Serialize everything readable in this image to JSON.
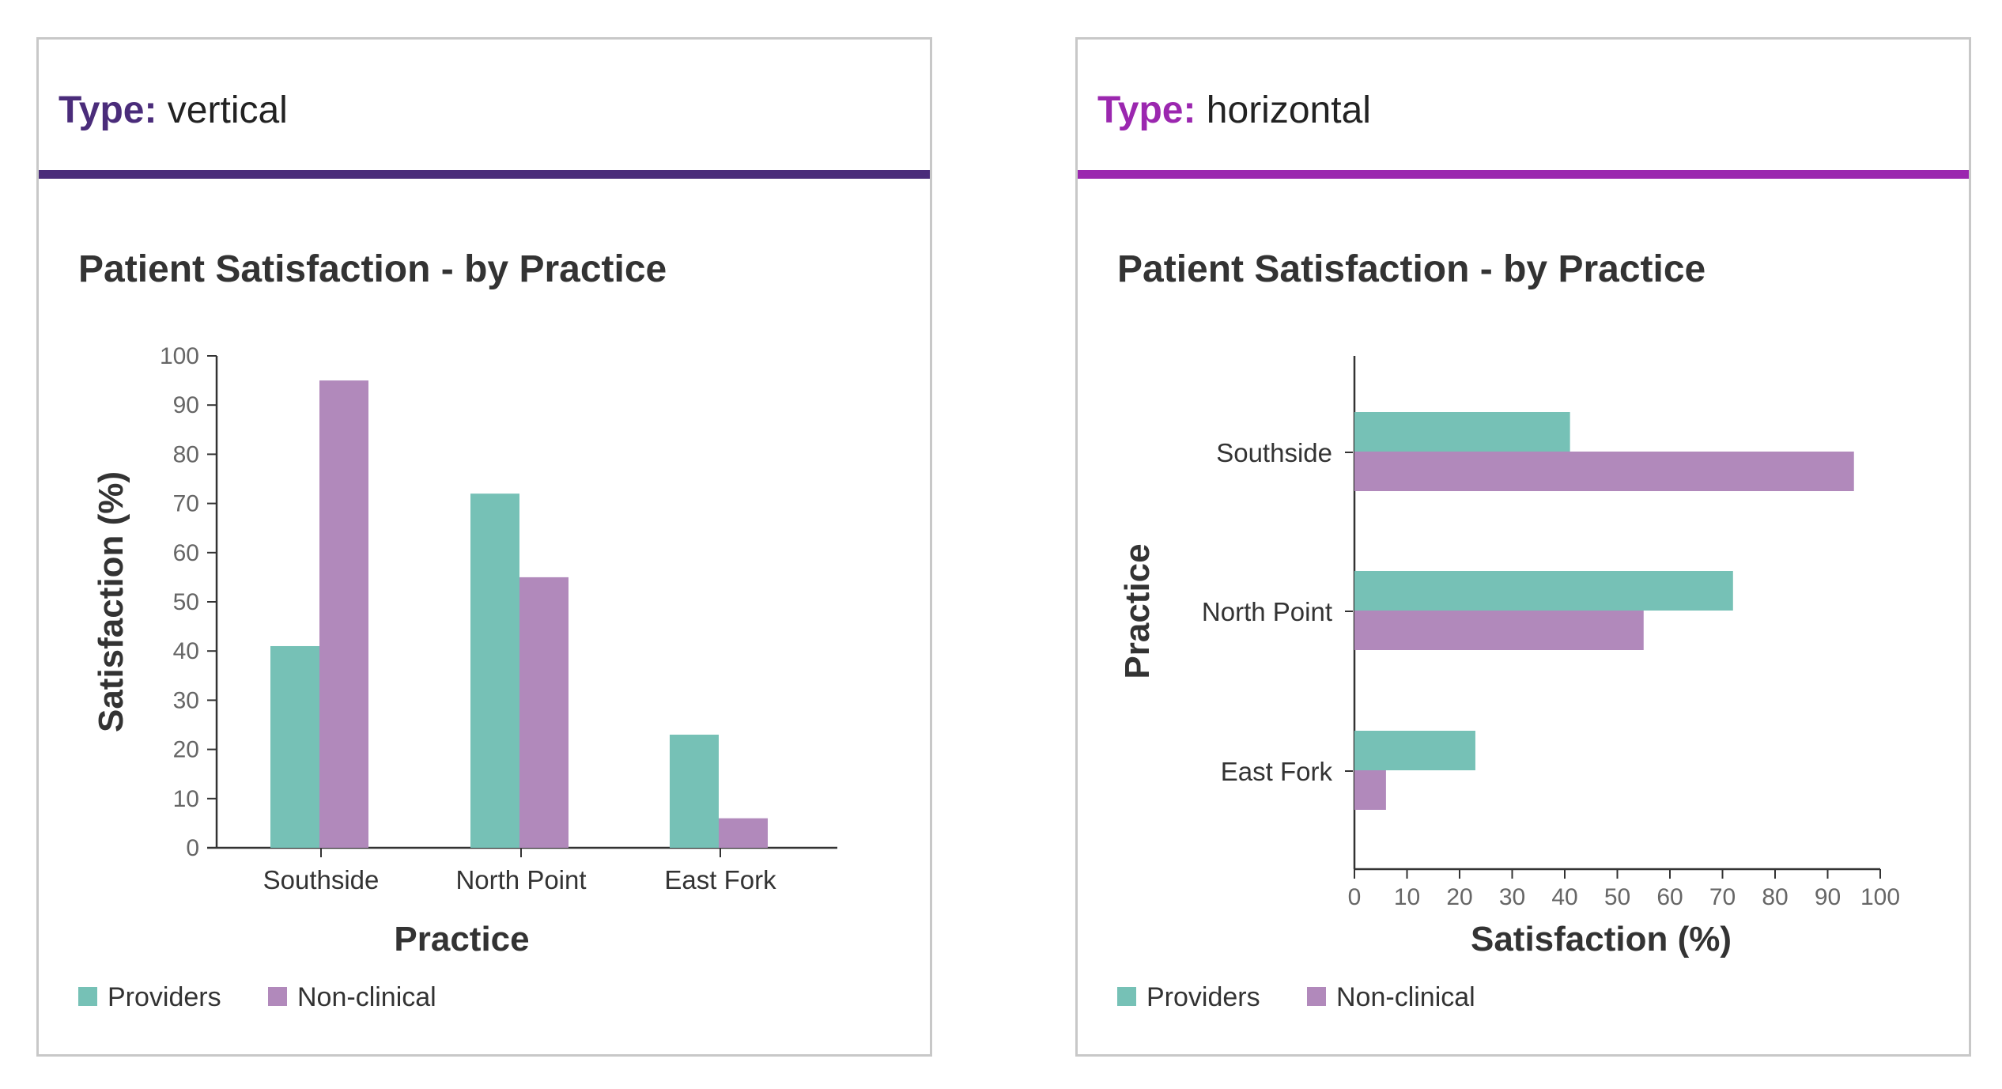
{
  "colors": {
    "providers": "#76c1b6",
    "nonclinical": "#b189bb",
    "accent_vertical": "#4a2c7a",
    "accent_horizontal": "#9b27af"
  },
  "cards": [
    {
      "type_label": "Type:",
      "type_value": "vertical"
    },
    {
      "type_label": "Type:",
      "type_value": "horizontal"
    }
  ],
  "chart_data": [
    {
      "type": "bar",
      "orientation": "vertical",
      "title": "Patient Satisfaction - by Practice",
      "categories": [
        "Southside",
        "North Point",
        "East Fork"
      ],
      "series": [
        {
          "name": "Providers",
          "values": [
            41,
            72,
            23
          ]
        },
        {
          "name": "Non-clinical",
          "values": [
            95,
            55,
            6
          ]
        }
      ],
      "xlabel": "Practice",
      "ylabel": "Satisfaction (%)",
      "ylim": [
        0,
        100
      ],
      "ticks": [
        0,
        10,
        20,
        30,
        40,
        50,
        60,
        70,
        80,
        90,
        100
      ],
      "legend": "bottom-left",
      "grid": false
    },
    {
      "type": "bar",
      "orientation": "horizontal",
      "title": "Patient Satisfaction - by Practice",
      "categories": [
        "Southside",
        "North Point",
        "East Fork"
      ],
      "series": [
        {
          "name": "Providers",
          "values": [
            41,
            72,
            23
          ]
        },
        {
          "name": "Non-clinical",
          "values": [
            95,
            55,
            6
          ]
        }
      ],
      "xlabel": "Satisfaction (%)",
      "ylabel": "Practice",
      "xlim": [
        0,
        100
      ],
      "ticks": [
        0,
        10,
        20,
        30,
        40,
        50,
        60,
        70,
        80,
        90,
        100
      ],
      "legend": "bottom-left",
      "grid": false
    }
  ]
}
